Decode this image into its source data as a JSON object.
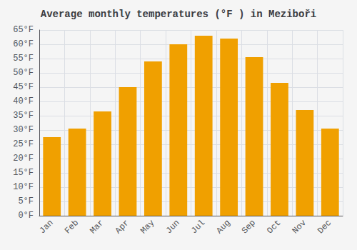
{
  "chart_data": {
    "type": "bar",
    "title": "Average monthly temperatures (°F ) in Meziboři",
    "categories": [
      "Jan",
      "Feb",
      "Mar",
      "Apr",
      "May",
      "Jun",
      "Jul",
      "Aug",
      "Sep",
      "Oct",
      "Nov",
      "Dec"
    ],
    "values": [
      27.5,
      30.5,
      36.5,
      45.0,
      54.0,
      60.0,
      63.0,
      62.0,
      55.5,
      46.5,
      37.0,
      30.5
    ],
    "color": "#F0A000",
    "ylim": [
      0,
      65
    ],
    "yticks": [
      {
        "value": 0,
        "label": "0°F"
      },
      {
        "value": 5,
        "label": "5°F"
      },
      {
        "value": 10,
        "label": "10°F"
      },
      {
        "value": 15,
        "label": "15°F"
      },
      {
        "value": 20,
        "label": "20°F"
      },
      {
        "value": 25,
        "label": "25°F"
      },
      {
        "value": 30,
        "label": "30°F"
      },
      {
        "value": 35,
        "label": "35°F"
      },
      {
        "value": 40,
        "label": "40°F"
      },
      {
        "value": 45,
        "label": "45°F"
      },
      {
        "value": 50,
        "label": "50°F"
      },
      {
        "value": 55,
        "label": "55°F"
      },
      {
        "value": 60,
        "label": "60°F"
      },
      {
        "value": 65,
        "label": "65°F"
      }
    ],
    "grid": true
  }
}
